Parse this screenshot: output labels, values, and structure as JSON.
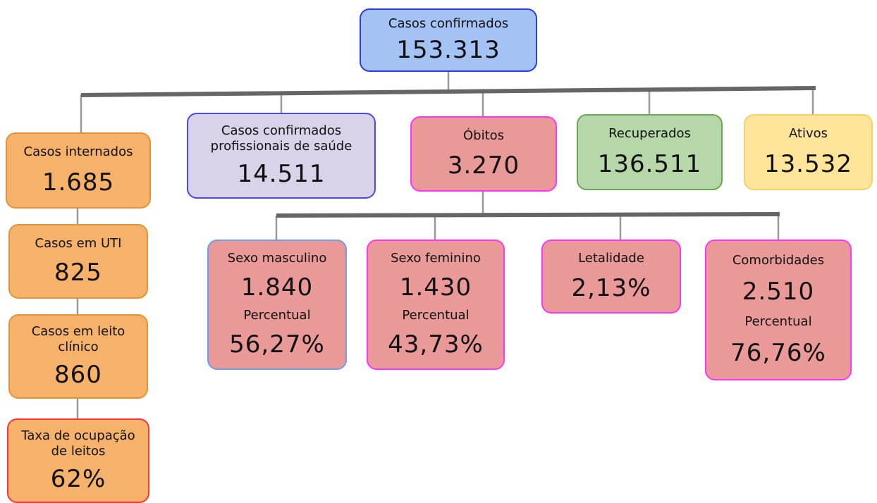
{
  "nodes": [
    {
      "label": "Casos confirmados",
      "value": "153.313"
    },
    {
      "label": "Casos internados",
      "value": "1.685"
    },
    {
      "label": "Casos em UTI",
      "value": "825"
    },
    {
      "label": "Casos em leito clínico",
      "value": "860"
    },
    {
      "label": "Taxa de ocupação de leitos",
      "value": "62%"
    },
    {
      "label": "Casos confirmados profissionais de saúde",
      "value": "14.511"
    },
    {
      "label": "Óbitos",
      "value": "3.270"
    },
    {
      "label": "Recuperados",
      "value": "136.511"
    },
    {
      "label": "Ativos",
      "value": "13.532"
    },
    {
      "label": "Sexo masculino",
      "value": "1.840",
      "sublabel": "Percentual",
      "subvalue": "56,27%"
    },
    {
      "label": "Sexo feminino",
      "value": "1.430",
      "sublabel": "Percentual",
      "subvalue": "43,73%"
    },
    {
      "label": "Letalidade",
      "value": "2,13%"
    },
    {
      "label": "Comorbidades",
      "value": "2.510",
      "sublabel": "Percentual",
      "subvalue": "76,76%"
    }
  ]
}
